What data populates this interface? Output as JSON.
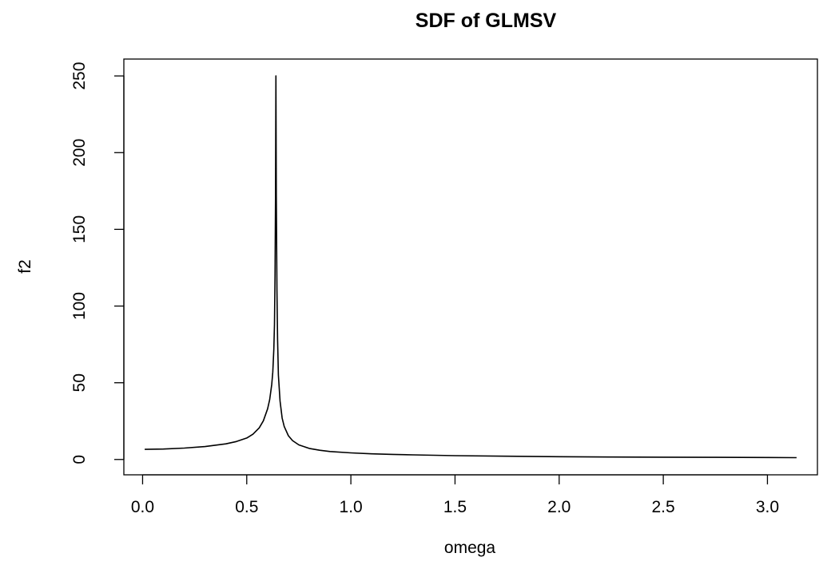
{
  "chart_data": {
    "type": "line",
    "title": "SDF of GLMSV",
    "xlabel": "omega",
    "ylabel": "f2",
    "xlim": [
      -0.09,
      3.24
    ],
    "ylim": [
      -10,
      261
    ],
    "x_ticks": [
      0.0,
      0.5,
      1.0,
      1.5,
      2.0,
      2.5,
      3.0
    ],
    "x_tick_labels": [
      "0.0",
      "0.5",
      "1.0",
      "1.5",
      "2.0",
      "2.5",
      "3.0"
    ],
    "y_ticks": [
      0,
      50,
      100,
      150,
      200,
      250
    ],
    "y_tick_labels": [
      "0",
      "50",
      "100",
      "150",
      "200",
      "250"
    ],
    "grid": false,
    "legend": "none",
    "line_color": "#000000",
    "series": [
      {
        "x": [
          0.01,
          0.1,
          0.2,
          0.3,
          0.4,
          0.45,
          0.5,
          0.53,
          0.56,
          0.58,
          0.6,
          0.61,
          0.62,
          0.625,
          0.63,
          0.633,
          0.636,
          0.638,
          0.64,
          0.642,
          0.645,
          0.648,
          0.652,
          0.66,
          0.67,
          0.68,
          0.7,
          0.72,
          0.75,
          0.8,
          0.85,
          0.9,
          1.0,
          1.1,
          1.2,
          1.3,
          1.5,
          1.75,
          2.0,
          2.25,
          2.5,
          2.75,
          3.0,
          3.14
        ],
        "values": [
          6.6,
          6.8,
          7.4,
          8.4,
          10.2,
          11.7,
          14.0,
          16.5,
          20.6,
          25.2,
          33.0,
          39.0,
          49.0,
          57.0,
          72.0,
          88.0,
          120.0,
          170.0,
          250.0,
          172.0,
          110.0,
          78.0,
          55.0,
          38.0,
          27.0,
          21.5,
          15.5,
          12.3,
          9.5,
          7.2,
          6.0,
          5.2,
          4.3,
          3.7,
          3.3,
          3.0,
          2.5,
          2.1,
          1.8,
          1.6,
          1.5,
          1.4,
          1.3,
          1.2
        ]
      }
    ]
  }
}
